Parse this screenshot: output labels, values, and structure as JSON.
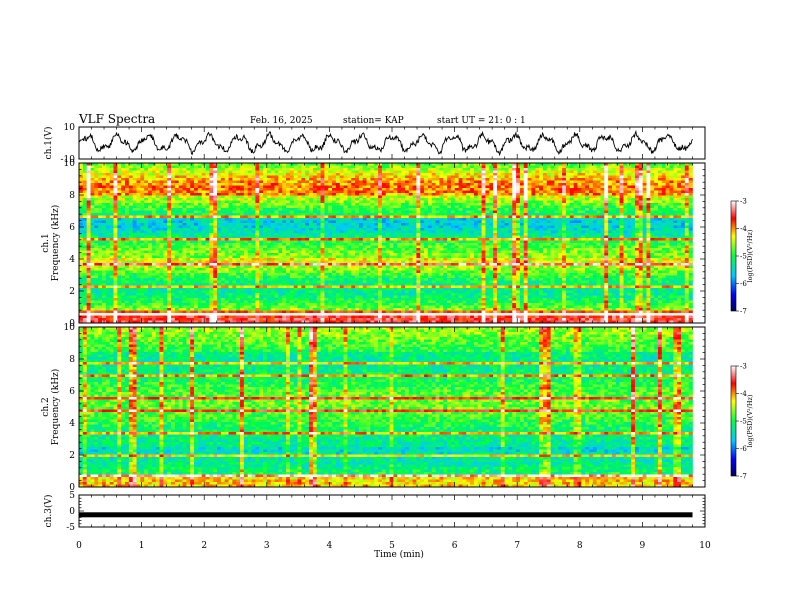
{
  "header": {
    "title": "VLF Spectra",
    "date": "Feb. 16, 2025",
    "station": "station= KAP",
    "start": "start  UT =   21: 0  : 1"
  },
  "chart_data": [
    {
      "type": "line",
      "panel": "ch1-waveform",
      "ylabel": "ch.1(V)",
      "ylim": [
        -10,
        10
      ],
      "ytick_labels": [
        "10",
        "-10"
      ],
      "xlim": [
        0,
        10
      ],
      "data_extent_min": 9.8,
      "description_of_values": "oscillating voltage between roughly -8 and 8 V"
    },
    {
      "type": "heatmap",
      "panel": "ch1-spectrogram",
      "ylabel": "ch.1\nFrequency (kHz)",
      "ylabel_line1": "ch.1",
      "ylabel_line2": "Frequency (kHz)",
      "ylim": [
        0,
        10
      ],
      "ytick_labels": [
        "0",
        "2",
        "4",
        "6",
        "8",
        "10"
      ],
      "xlim": [
        0,
        10
      ],
      "colorbar": {
        "label": "log(PSD)(V²/Hz)",
        "range": [
          -7,
          -3
        ],
        "tick_labels": [
          "-3",
          "-4",
          "-5",
          "-6",
          "-7"
        ]
      }
    },
    {
      "type": "heatmap",
      "panel": "ch2-spectrogram",
      "ylabel_line1": "ch.2",
      "ylabel_line2": "Frequency (kHz)",
      "ylim": [
        0,
        10
      ],
      "ytick_labels": [
        "0",
        "2",
        "4",
        "6",
        "8",
        "10"
      ],
      "xlim": [
        0,
        10
      ],
      "colorbar": {
        "label": "log(PSD)(V²/Hz)",
        "range": [
          -7,
          -3
        ],
        "tick_labels": [
          "-3",
          "-4",
          "-5",
          "-6",
          "-7"
        ]
      }
    },
    {
      "type": "line",
      "panel": "ch3-waveform",
      "ylabel": "ch.3(V)",
      "ylim": [
        -5,
        5
      ],
      "ytick_labels": [
        "5",
        "0",
        "-5"
      ],
      "xlim": [
        0,
        10
      ],
      "xlabel": "Time (min)",
      "xtick_labels": [
        "0",
        "1",
        "2",
        "3",
        "4",
        "5",
        "6",
        "7",
        "8",
        "9",
        "10"
      ],
      "level_V": -1.2
    }
  ],
  "colors": {
    "colormap": [
      "#000080",
      "#0000ff",
      "#00ffff",
      "#00ff00",
      "#ffff00",
      "#ff0000",
      "#ffffff"
    ]
  }
}
